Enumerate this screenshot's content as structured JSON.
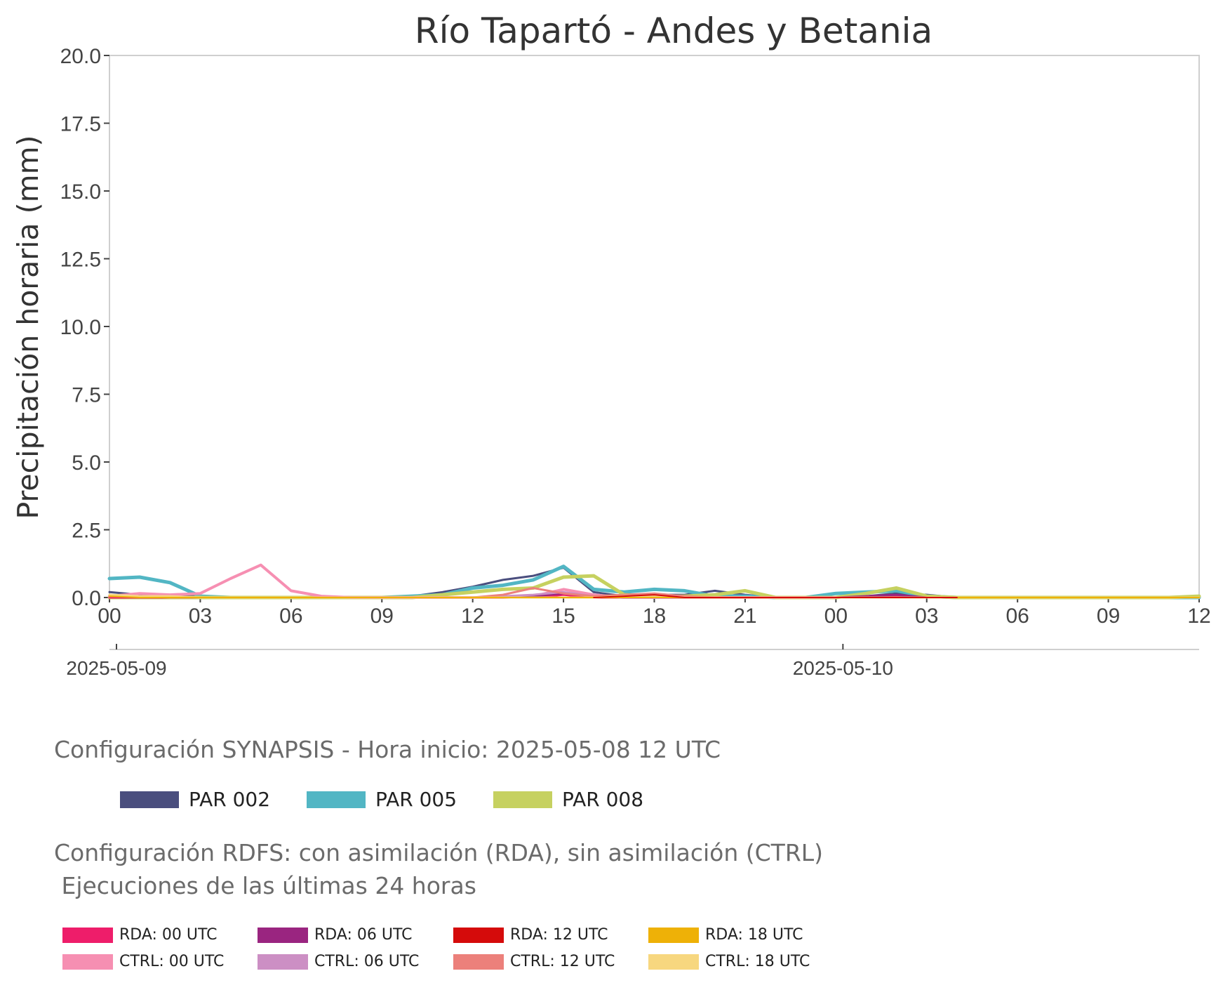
{
  "chart_data": {
    "type": "line",
    "title": "Río Tapartó - Andes y Betania",
    "ylabel": "Precipitación horaria (mm)",
    "xlabel": "",
    "ylim": [
      0,
      20
    ],
    "yticks": [
      "0.0",
      "2.5",
      "5.0",
      "7.5",
      "10.0",
      "12.5",
      "15.0",
      "17.5",
      "20.0"
    ],
    "x_hours": [
      0,
      3,
      6,
      9,
      12,
      15,
      18,
      21,
      24,
      27,
      30,
      33,
      36
    ],
    "xtick_labels": [
      "00",
      "03",
      "06",
      "09",
      "12",
      "15",
      "18",
      "21",
      "00",
      "03",
      "06",
      "09",
      "12"
    ],
    "dates": [
      {
        "hour": 0,
        "label": "2025-05-09"
      },
      {
        "hour": 24,
        "label": "2025-05-10"
      }
    ],
    "grid": false,
    "series": [
      {
        "name": "PAR 002",
        "color": "#4a4e7e",
        "width": 3,
        "x": [
          0,
          1,
          2,
          3,
          4,
          5,
          6,
          7,
          8,
          9,
          10,
          11,
          12,
          13,
          14,
          15,
          16,
          17,
          18,
          19,
          20,
          21,
          22,
          23,
          24,
          25,
          26,
          27,
          28,
          29,
          30,
          31,
          32,
          33,
          34,
          35,
          36
        ],
        "y": [
          0.2,
          0.1,
          0.05,
          0.05,
          0,
          0,
          0,
          0,
          0,
          0,
          0.05,
          0.2,
          0.4,
          0.65,
          0.8,
          1.1,
          0.2,
          0.05,
          0.1,
          0.1,
          0.25,
          0.1,
          0,
          0,
          0,
          0.05,
          0.15,
          0.1,
          0,
          0,
          0,
          0,
          0,
          0,
          0,
          0,
          0
        ]
      },
      {
        "name": "PAR 005",
        "color": "#52b6c4",
        "width": 5,
        "x": [
          0,
          1,
          2,
          3,
          4,
          5,
          6,
          7,
          8,
          9,
          10,
          11,
          12,
          13,
          14,
          15,
          16,
          17,
          18,
          19,
          20,
          21,
          22,
          23,
          24,
          25,
          26,
          27,
          28,
          29,
          30,
          31,
          32,
          33,
          34,
          35,
          36
        ],
        "y": [
          0.7,
          0.75,
          0.55,
          0.05,
          0,
          0,
          0,
          0,
          0,
          0,
          0.05,
          0.1,
          0.35,
          0.45,
          0.65,
          1.15,
          0.3,
          0.2,
          0.3,
          0.25,
          0.05,
          0.05,
          0,
          0,
          0.15,
          0.2,
          0.25,
          0.05,
          0,
          0,
          0,
          0,
          0,
          0,
          0,
          0,
          0
        ]
      },
      {
        "name": "PAR 008",
        "color": "#c6d160",
        "width": 5,
        "x": [
          0,
          1,
          2,
          3,
          4,
          5,
          6,
          7,
          8,
          9,
          10,
          11,
          12,
          13,
          14,
          15,
          16,
          17,
          18,
          19,
          20,
          21,
          22,
          23,
          24,
          25,
          26,
          27,
          28,
          29,
          30,
          31,
          32,
          33,
          34,
          35,
          36
        ],
        "y": [
          0,
          0,
          0,
          0,
          0,
          0,
          0,
          0,
          0,
          0,
          0,
          0.1,
          0.2,
          0.3,
          0.35,
          0.75,
          0.8,
          0.1,
          0.05,
          0.05,
          0.1,
          0.25,
          0,
          0,
          0,
          0.15,
          0.35,
          0.05,
          0,
          0,
          0,
          0,
          0,
          0,
          0,
          0,
          0.05
        ]
      },
      {
        "name": "CTRL: 00 UTC",
        "color": "#f68fb2",
        "width": 4,
        "x": [
          0,
          1,
          2,
          3,
          4,
          5,
          6,
          7,
          8,
          9,
          10,
          11,
          12,
          13,
          14,
          15,
          16,
          17,
          18,
          19,
          20,
          21,
          22,
          23,
          24
        ],
        "y": [
          0.05,
          0.15,
          0.1,
          0.15,
          0.7,
          1.2,
          0.25,
          0.05,
          0,
          0,
          0,
          0,
          0,
          0,
          0.05,
          0.3,
          0.1,
          0,
          0,
          0,
          0,
          0,
          0,
          0,
          0
        ]
      },
      {
        "name": "RDA: 00 UTC",
        "color": "#ee1d6a",
        "width": 3,
        "x": [
          0,
          1,
          2,
          3,
          4,
          5,
          6,
          7,
          8,
          9,
          10,
          11,
          12,
          13,
          14,
          15,
          16,
          17,
          18,
          19,
          20,
          21,
          22,
          23,
          24,
          25,
          26,
          27,
          28
        ],
        "y": [
          0,
          0,
          0,
          0,
          0,
          0,
          0,
          0,
          0,
          0,
          0,
          0,
          0,
          0,
          0,
          0.1,
          0,
          0,
          0,
          0,
          0,
          0,
          0,
          0,
          0,
          0,
          0.05,
          0,
          0
        ]
      },
      {
        "name": "RDA: 06 UTC",
        "color": "#9a2580",
        "width": 3,
        "x": [
          6,
          7,
          8,
          9,
          10,
          11,
          12,
          13,
          14,
          15,
          16,
          17,
          18,
          19,
          20,
          21,
          22,
          23,
          24,
          25,
          26,
          27,
          28,
          29,
          30
        ],
        "y": [
          0,
          0,
          0,
          0,
          0,
          0,
          0,
          0,
          0.05,
          0.15,
          0.05,
          0,
          0,
          0,
          0,
          0,
          0,
          0,
          0,
          0.05,
          0.1,
          0,
          0,
          0,
          0
        ]
      },
      {
        "name": "CTRL: 06 UTC",
        "color": "#cc8fc4",
        "width": 3,
        "x": [
          6,
          7,
          8,
          9,
          10,
          11,
          12,
          13,
          14,
          15,
          16,
          17,
          18,
          19,
          20,
          21,
          22,
          23,
          24,
          25,
          26,
          27,
          28,
          29,
          30
        ],
        "y": [
          0,
          0,
          0,
          0,
          0,
          0,
          0,
          0.05,
          0.1,
          0.2,
          0.05,
          0,
          0,
          0,
          0,
          0,
          0,
          0,
          0,
          0,
          0,
          0,
          0,
          0,
          0
        ]
      },
      {
        "name": "CTRL: 12 UTC",
        "color": "#ec807b",
        "width": 3,
        "x": [
          0,
          1,
          2,
          3,
          4,
          5,
          6,
          7,
          8,
          9,
          10,
          11,
          12,
          13,
          14,
          15,
          16,
          17,
          18,
          19,
          20,
          21,
          22,
          23,
          24,
          25,
          26,
          27,
          28,
          29,
          30,
          31,
          32,
          33,
          34,
          35,
          36
        ],
        "y": [
          0.05,
          0.05,
          0,
          0,
          0,
          0,
          0,
          0,
          0,
          0,
          0,
          0,
          0,
          0.1,
          0.35,
          0.15,
          0.05,
          0.1,
          0.15,
          0.05,
          0,
          0,
          0,
          0,
          0,
          0,
          0,
          0,
          0,
          0,
          0,
          0,
          0,
          0,
          0,
          0,
          0
        ]
      },
      {
        "name": "CTRL: 18 UTC",
        "color": "#f7d77f",
        "width": 3,
        "x": [
          0,
          1,
          2,
          3,
          4,
          5,
          6,
          7,
          8,
          9,
          10,
          11,
          12,
          13,
          14,
          15,
          16,
          17,
          18,
          19,
          20,
          21,
          22,
          23,
          24,
          25,
          26,
          27,
          28,
          29,
          30,
          31,
          32,
          33,
          34,
          35,
          36
        ],
        "y": [
          0.1,
          0.05,
          0.05,
          0,
          0,
          0,
          0,
          0,
          0,
          0,
          0,
          0,
          0,
          0,
          0,
          0,
          0,
          0.05,
          0.05,
          0,
          0,
          0,
          0,
          0,
          0,
          0,
          0,
          0,
          0,
          0,
          0,
          0,
          0,
          0,
          0,
          0,
          0
        ]
      },
      {
        "name": "RDA: 18 UTC",
        "color": "#eeb107",
        "width": 2,
        "x": [
          0,
          1,
          2,
          3,
          4,
          5,
          6,
          7,
          8,
          9,
          10,
          11,
          12,
          13,
          14,
          15,
          16,
          17,
          18,
          19,
          20,
          21,
          22,
          23,
          24,
          25,
          26,
          27,
          28,
          29,
          30,
          31,
          32,
          33,
          34,
          35,
          36
        ],
        "y": [
          0.05,
          0,
          0,
          0,
          0,
          0,
          0,
          0,
          0,
          0,
          0,
          0,
          0,
          0,
          0,
          0,
          0,
          0,
          0,
          0,
          0,
          0,
          0,
          0,
          0,
          0,
          0,
          0,
          0,
          0,
          0,
          0,
          0,
          0,
          0,
          0,
          0
        ]
      },
      {
        "name": "RDA: 12 UTC",
        "color": "#d50b0b",
        "width": 2,
        "x": [
          16,
          17,
          18,
          19,
          20,
          21,
          22,
          23,
          24,
          25,
          26,
          27,
          28
        ],
        "y": [
          0,
          0.05,
          0.1,
          0,
          0,
          0,
          0,
          0,
          0,
          0,
          0,
          0,
          0
        ]
      }
    ]
  },
  "synapsis": {
    "title": "Configuración SYNAPSIS - Hora inicio: 2025-05-08 12 UTC",
    "legend": [
      {
        "label": "PAR 002",
        "color": "#4a4e7e"
      },
      {
        "label": "PAR 005",
        "color": "#52b6c4"
      },
      {
        "label": "PAR 008",
        "color": "#c6d160"
      }
    ]
  },
  "rdfs": {
    "title_line1": "Configuración RDFS: con asimilación (RDA), sin asimilación (CTRL)",
    "title_line2": " Ejecuciones de las últimas 24 horas",
    "legend": [
      {
        "label": "RDA: 00 UTC",
        "color": "#ee1d6a"
      },
      {
        "label": "RDA: 06 UTC",
        "color": "#9a2580"
      },
      {
        "label": "RDA: 12 UTC",
        "color": "#d50b0b"
      },
      {
        "label": "RDA: 18 UTC",
        "color": "#eeb107"
      },
      {
        "label": "CTRL: 00 UTC",
        "color": "#f68fb2"
      },
      {
        "label": "CTRL: 06 UTC",
        "color": "#cc8fc4"
      },
      {
        "label": "CTRL: 12 UTC",
        "color": "#ec807b"
      },
      {
        "label": "CTRL: 18 UTC",
        "color": "#f7d77f"
      }
    ]
  }
}
